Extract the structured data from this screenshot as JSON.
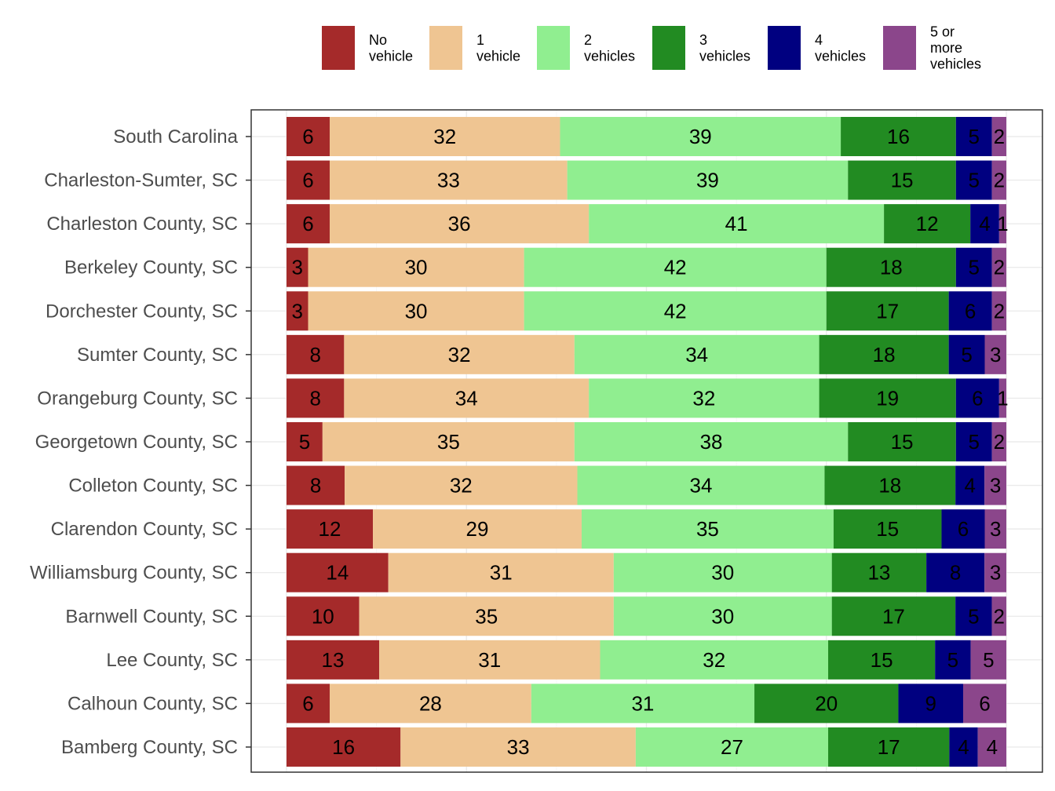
{
  "chart_data": {
    "type": "bar",
    "orientation": "horizontal",
    "stacked": true,
    "title": "",
    "xlabel": "",
    "ylabel": "",
    "xlim": [
      0,
      100
    ],
    "grid": true,
    "legend_position": "top",
    "categories": [
      "South Carolina",
      "Charleston-Sumter, SC",
      "Charleston County, SC",
      "Berkeley County, SC",
      "Dorchester County, SC",
      "Sumter County, SC",
      "Orangeburg County, SC",
      "Georgetown County, SC",
      "Colleton County, SC",
      "Clarendon County, SC",
      "Williamsburg County, SC",
      "Barnwell County, SC",
      "Lee County, SC",
      "Calhoun County, SC",
      "Bamberg County, SC"
    ],
    "series": [
      {
        "name": "No vehicle",
        "legend_lines": [
          "No",
          "vehicle"
        ],
        "color": "#A52A2A",
        "values": [
          6,
          6,
          6,
          3,
          3,
          8,
          8,
          5,
          8,
          12,
          14,
          10,
          13,
          6,
          16
        ]
      },
      {
        "name": "1 vehicle",
        "legend_lines": [
          "1",
          "vehicle"
        ],
        "color": "#EFC592",
        "values": [
          32,
          33,
          36,
          30,
          30,
          32,
          34,
          35,
          32,
          29,
          31,
          35,
          31,
          28,
          33
        ]
      },
      {
        "name": "2 vehicles",
        "legend_lines": [
          "2",
          "vehicles"
        ],
        "color": "#90EE90",
        "values": [
          39,
          39,
          41,
          42,
          42,
          34,
          32,
          38,
          34,
          35,
          30,
          30,
          32,
          31,
          27
        ]
      },
      {
        "name": "3 vehicles",
        "legend_lines": [
          "3",
          "vehicles"
        ],
        "color": "#228B22",
        "values": [
          16,
          15,
          12,
          18,
          17,
          18,
          19,
          15,
          18,
          15,
          13,
          17,
          15,
          20,
          17
        ]
      },
      {
        "name": "4 vehicles",
        "legend_lines": [
          "4",
          "vehicles"
        ],
        "color": "#000080",
        "values": [
          5,
          5,
          4,
          5,
          6,
          5,
          6,
          5,
          4,
          6,
          8,
          5,
          5,
          9,
          4
        ]
      },
      {
        "name": "5 or more vehicles",
        "legend_lines": [
          "5 or",
          "more",
          "vehicles"
        ],
        "color": "#8B468B",
        "values": [
          2,
          2,
          1,
          2,
          2,
          3,
          1,
          2,
          3,
          3,
          3,
          2,
          5,
          6,
          4
        ]
      }
    ]
  }
}
